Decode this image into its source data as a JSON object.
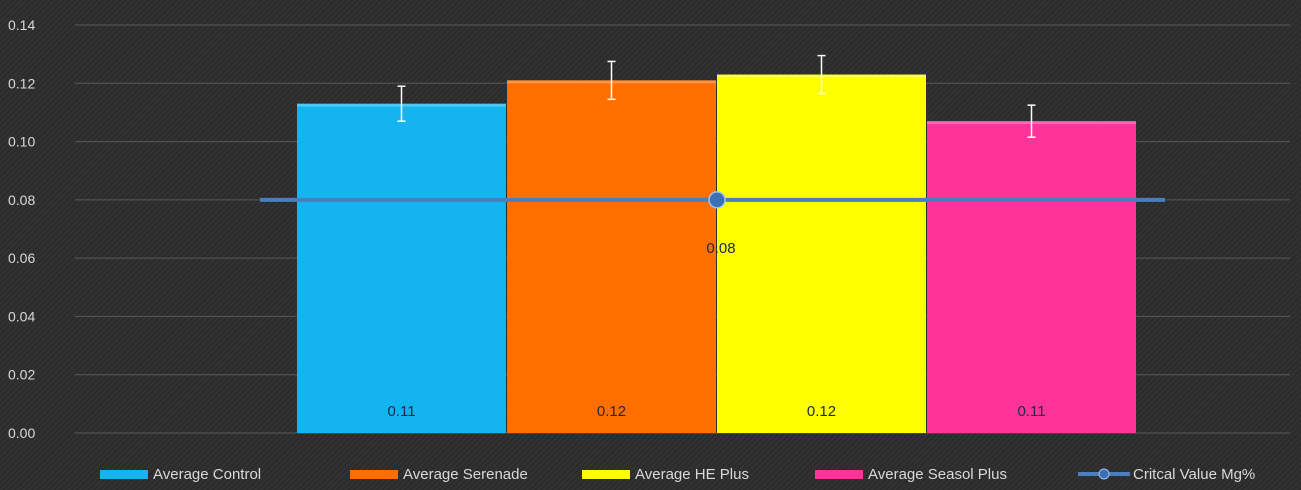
{
  "chart_data": {
    "type": "bar",
    "categories": [
      "Average Control",
      "Average Serenade",
      "Average HE Plus",
      "Average Seasol Plus"
    ],
    "values": [
      0.113,
      0.121,
      0.123,
      0.107
    ],
    "error": [
      0.006,
      0.0065,
      0.0065,
      0.0055
    ],
    "value_labels": [
      "0.11",
      "0.12",
      "0.12",
      "0.11"
    ],
    "colors": [
      "#14b4f0",
      "#ff6f00",
      "#ffff00",
      "#ff3399"
    ],
    "ylim": [
      0,
      0.14
    ],
    "yticks": [
      "0.00",
      "0.02",
      "0.04",
      "0.06",
      "0.08",
      "0.10",
      "0.12",
      "0.14"
    ],
    "grid": true,
    "legend_position": "bottom",
    "reference_line": {
      "name": "Critcal Value Mg%",
      "value": 0.08,
      "label": "0.08",
      "color": "#4a7fbf"
    },
    "xlabel": "",
    "ylabel": "",
    "title": ""
  }
}
